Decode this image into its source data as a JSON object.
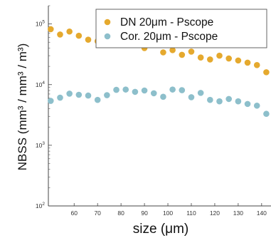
{
  "chart_data": {
    "type": "scatter",
    "title": "",
    "xlabel": "size (μm)",
    "ylabel": "NBSS (mm³ / mm³ / m³)",
    "xlim": [
      49,
      144
    ],
    "ylim": [
      100,
      200000
    ],
    "yscale": "log",
    "x_ticks": [
      60,
      70,
      80,
      90,
      100,
      110,
      120,
      130,
      140
    ],
    "y_ticks": [
      {
        "value": 100,
        "label_base": "10",
        "label_exp": "2"
      },
      {
        "value": 1000,
        "label_base": "10",
        "label_exp": "3"
      },
      {
        "value": 10000,
        "label_base": "10",
        "label_exp": "4"
      },
      {
        "value": 100000,
        "label_base": "10",
        "label_exp": "5"
      }
    ],
    "grid": false,
    "legend_position": "top-right",
    "series": [
      {
        "name": "DN 20μm - Pscope",
        "color": "#E5A92E",
        "x": [
          50,
          54,
          58,
          62,
          66,
          70,
          74,
          78,
          82,
          86,
          90,
          94,
          98,
          102,
          106,
          110,
          114,
          118,
          122,
          126,
          130,
          134,
          138,
          142
        ],
        "y": [
          82000,
          67000,
          75000,
          64000,
          55000,
          52000,
          53000,
          52000,
          55000,
          46000,
          40000,
          48000,
          34000,
          37000,
          31000,
          35000,
          28000,
          26000,
          30000,
          27000,
          25000,
          23000,
          21000,
          16000
        ]
      },
      {
        "name": "Cor. 20μm - Pscope",
        "color": "#8DBFCB",
        "x": [
          50,
          54,
          58,
          62,
          66,
          70,
          74,
          78,
          82,
          86,
          90,
          94,
          98,
          102,
          106,
          110,
          114,
          118,
          122,
          126,
          130,
          134,
          138,
          142
        ],
        "y": [
          5400,
          6100,
          7100,
          6800,
          6600,
          5600,
          6700,
          8200,
          8300,
          7600,
          8000,
          7200,
          6300,
          8300,
          8100,
          6200,
          7300,
          5600,
          5300,
          5800,
          5300,
          4800,
          4500,
          3300
        ]
      }
    ]
  }
}
